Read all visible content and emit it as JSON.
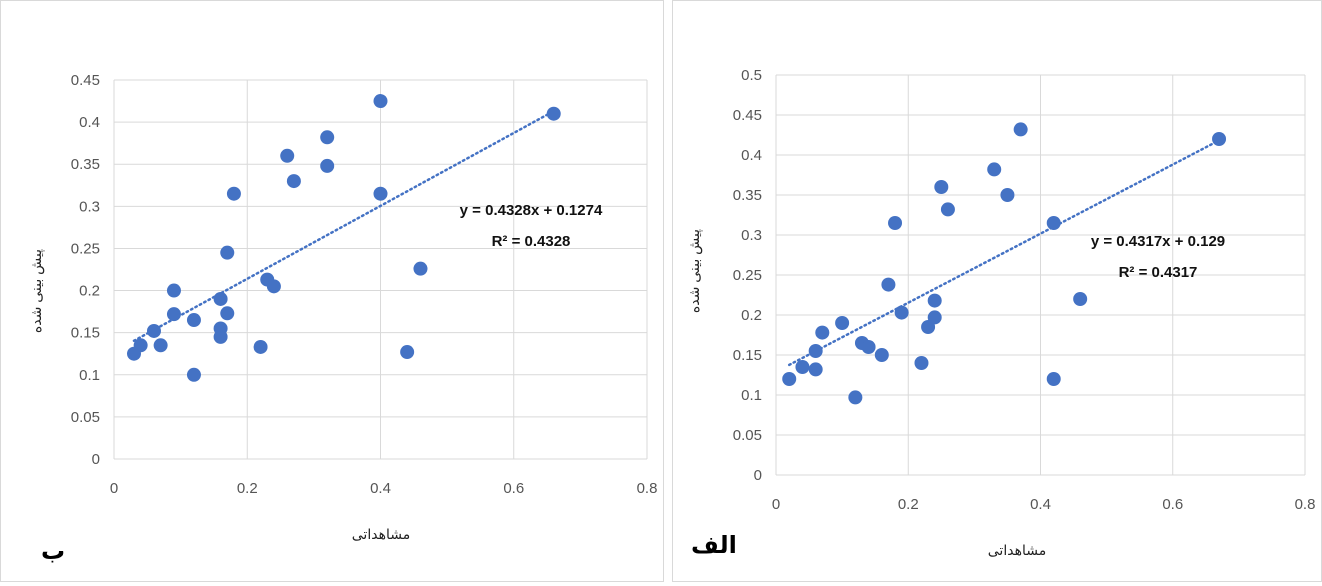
{
  "chart_data": [
    {
      "id": "left",
      "type": "scatter",
      "panel_label": "ب",
      "xlabel": "مشاهداتی",
      "ylabel": "پیش بینی شده",
      "xlim": [
        0,
        0.8
      ],
      "ylim": [
        0,
        0.45
      ],
      "x_ticks": [
        "0",
        "0.2",
        "0.4",
        "0.6",
        "0.8"
      ],
      "y_ticks": [
        "0",
        "0.05",
        "0.1",
        "0.15",
        "0.2",
        "0.25",
        "0.3",
        "0.35",
        "0.4",
        "0.45"
      ],
      "grid": true,
      "color": "#4472C4",
      "trendline": {
        "slope": 0.4328,
        "intercept": 0.1274,
        "style": "dotted",
        "x_range": [
          0.03,
          0.66
        ]
      },
      "equation": "y = 0.4328x + 0.1274",
      "r2": "R² = 0.4328",
      "points": [
        {
          "x": 0.03,
          "y": 0.125
        },
        {
          "x": 0.04,
          "y": 0.135
        },
        {
          "x": 0.06,
          "y": 0.152
        },
        {
          "x": 0.07,
          "y": 0.135
        },
        {
          "x": 0.09,
          "y": 0.172
        },
        {
          "x": 0.09,
          "y": 0.2
        },
        {
          "x": 0.12,
          "y": 0.1
        },
        {
          "x": 0.12,
          "y": 0.165
        },
        {
          "x": 0.16,
          "y": 0.145
        },
        {
          "x": 0.16,
          "y": 0.155
        },
        {
          "x": 0.16,
          "y": 0.19
        },
        {
          "x": 0.17,
          "y": 0.173
        },
        {
          "x": 0.17,
          "y": 0.245
        },
        {
          "x": 0.18,
          "y": 0.315
        },
        {
          "x": 0.22,
          "y": 0.133
        },
        {
          "x": 0.23,
          "y": 0.213
        },
        {
          "x": 0.24,
          "y": 0.205
        },
        {
          "x": 0.26,
          "y": 0.36
        },
        {
          "x": 0.27,
          "y": 0.33
        },
        {
          "x": 0.32,
          "y": 0.348
        },
        {
          "x": 0.32,
          "y": 0.382
        },
        {
          "x": 0.4,
          "y": 0.425
        },
        {
          "x": 0.4,
          "y": 0.315
        },
        {
          "x": 0.44,
          "y": 0.127
        },
        {
          "x": 0.46,
          "y": 0.226
        },
        {
          "x": 0.66,
          "y": 0.41
        }
      ]
    },
    {
      "id": "right",
      "type": "scatter",
      "panel_label": "الف",
      "xlabel": "مشاهداتی",
      "ylabel": "پیش بینی شده",
      "xlim": [
        0,
        0.8
      ],
      "ylim": [
        0,
        0.5
      ],
      "x_ticks": [
        "0",
        "0.2",
        "0.4",
        "0.6",
        "0.8"
      ],
      "y_ticks": [
        "0",
        "0.05",
        "0.1",
        "0.15",
        "0.2",
        "0.25",
        "0.3",
        "0.35",
        "0.4",
        "0.45",
        "0.5"
      ],
      "grid": true,
      "color": "#4472C4",
      "trendline": {
        "slope": 0.4317,
        "intercept": 0.129,
        "style": "dotted",
        "x_range": [
          0.02,
          0.67
        ]
      },
      "equation": "y = 0.4317x + 0.129",
      "r2": "R² = 0.4317",
      "points": [
        {
          "x": 0.02,
          "y": 0.12
        },
        {
          "x": 0.04,
          "y": 0.135
        },
        {
          "x": 0.06,
          "y": 0.132
        },
        {
          "x": 0.06,
          "y": 0.155
        },
        {
          "x": 0.07,
          "y": 0.178
        },
        {
          "x": 0.1,
          "y": 0.19
        },
        {
          "x": 0.12,
          "y": 0.097
        },
        {
          "x": 0.13,
          "y": 0.165
        },
        {
          "x": 0.14,
          "y": 0.16
        },
        {
          "x": 0.16,
          "y": 0.15
        },
        {
          "x": 0.17,
          "y": 0.238
        },
        {
          "x": 0.18,
          "y": 0.315
        },
        {
          "x": 0.19,
          "y": 0.203
        },
        {
          "x": 0.22,
          "y": 0.14
        },
        {
          "x": 0.23,
          "y": 0.185
        },
        {
          "x": 0.24,
          "y": 0.197
        },
        {
          "x": 0.24,
          "y": 0.218
        },
        {
          "x": 0.25,
          "y": 0.36
        },
        {
          "x": 0.26,
          "y": 0.332
        },
        {
          "x": 0.33,
          "y": 0.382
        },
        {
          "x": 0.35,
          "y": 0.35
        },
        {
          "x": 0.37,
          "y": 0.432
        },
        {
          "x": 0.42,
          "y": 0.315
        },
        {
          "x": 0.42,
          "y": 0.12
        },
        {
          "x": 0.46,
          "y": 0.22
        },
        {
          "x": 0.67,
          "y": 0.42
        }
      ]
    }
  ]
}
